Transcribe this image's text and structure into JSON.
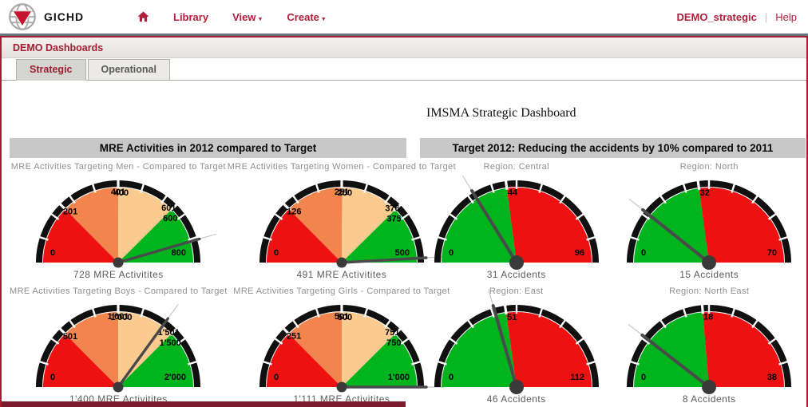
{
  "topbar": {
    "logo_text": "GICHD",
    "nav": [
      {
        "label": "Library"
      },
      {
        "label": "View"
      },
      {
        "label": "Create"
      }
    ],
    "user": "DEMO_strategic",
    "help_label": "Help"
  },
  "breadcrumb": "DEMO Dashboards",
  "tabs": [
    {
      "label": "Strategic",
      "active": true
    },
    {
      "label": "Operational",
      "active": false
    }
  ],
  "page_title": "IMSMA Strategic Dashboard",
  "panels": [
    {
      "header": "MRE Activities in 2012 compared to Target"
    },
    {
      "header": "Target 2012: Reducing the accidents by 10% compared to 2011"
    }
  ],
  "colors": {
    "accent": "#a51c30",
    "nav_red": "#b01e3c",
    "footer_bar": "#7d1b2e",
    "panel_header_bg": "#c8c8c8",
    "gauge": {
      "red": "#ee1111",
      "orange": "#f2854e",
      "tan": "#fbca8e",
      "green": "#00b41e",
      "arc": "#101010",
      "tick": "#ffffff",
      "needle": "#4a4a4a",
      "needle_ext": "#c8c8c8",
      "hub": "#3a3a3a"
    }
  },
  "chart_data": [
    {
      "type": "gauge",
      "panel": 0,
      "title": "MRE Activities Targeting Men - Compared to Target",
      "min": 0,
      "max": 800,
      "value": 728,
      "caption": "728 MRE Activitites",
      "min_label": "0",
      "max_label": "800",
      "bands": [
        {
          "from": 0,
          "to": 201,
          "color": "red"
        },
        {
          "from": 201,
          "to": 401,
          "color": "orange"
        },
        {
          "from": 401,
          "to": 601,
          "color": "tan"
        },
        {
          "from": 601,
          "to": 800,
          "color": "green"
        }
      ],
      "marks": [
        {
          "value": 201,
          "labels": [
            "201"
          ]
        },
        {
          "value": 400,
          "labels": [
            "401",
            "400"
          ],
          "mode": "overlap"
        },
        {
          "value": 601,
          "labels": [
            "601",
            "600"
          ],
          "mode": "stack"
        }
      ]
    },
    {
      "type": "gauge",
      "panel": 0,
      "title": "MRE Activities Targeting Women - Compared to Target",
      "min": 0,
      "max": 500,
      "value": 491,
      "caption": "491 MRE Activitites",
      "min_label": "0",
      "max_label": "500",
      "bands": [
        {
          "from": 0,
          "to": 126,
          "color": "red"
        },
        {
          "from": 126,
          "to": 251,
          "color": "orange"
        },
        {
          "from": 251,
          "to": 376,
          "color": "tan"
        },
        {
          "from": 376,
          "to": 500,
          "color": "green"
        }
      ],
      "marks": [
        {
          "value": 126,
          "labels": [
            "126"
          ]
        },
        {
          "value": 250,
          "labels": [
            "251",
            "250"
          ],
          "mode": "overlap"
        },
        {
          "value": 376,
          "labels": [
            "376",
            "375"
          ],
          "mode": "stack"
        }
      ]
    },
    {
      "type": "gauge",
      "panel": 0,
      "title": "MRE Activities Targeting Boys -  Compared to Target",
      "min": 0,
      "max": 2000,
      "value": 1400,
      "caption": "1'400 MRE Activitites",
      "min_label": "0",
      "max_label": "2'000",
      "bands": [
        {
          "from": 0,
          "to": 501,
          "color": "red"
        },
        {
          "from": 501,
          "to": 1001,
          "color": "orange"
        },
        {
          "from": 1001,
          "to": 1501,
          "color": "tan"
        },
        {
          "from": 1501,
          "to": 2000,
          "color": "green"
        }
      ],
      "marks": [
        {
          "value": 501,
          "labels": [
            "501"
          ]
        },
        {
          "value": 1000,
          "labels": [
            "1'001",
            "1'000"
          ],
          "mode": "overlap"
        },
        {
          "value": 1501,
          "labels": [
            "1'501",
            "1'500"
          ],
          "mode": "stack"
        }
      ]
    },
    {
      "type": "gauge",
      "panel": 0,
      "title": "MRE Activities Targeting Girls -  Compared to Target",
      "min": 0,
      "max": 1000,
      "value": 1111,
      "caption": "1'111 MRE Activitites",
      "min_label": "0",
      "max_label": "1'000",
      "bands": [
        {
          "from": 0,
          "to": 251,
          "color": "red"
        },
        {
          "from": 251,
          "to": 501,
          "color": "orange"
        },
        {
          "from": 501,
          "to": 751,
          "color": "tan"
        },
        {
          "from": 751,
          "to": 1000,
          "color": "green"
        }
      ],
      "marks": [
        {
          "value": 251,
          "labels": [
            "251"
          ]
        },
        {
          "value": 500,
          "labels": [
            "501",
            "500"
          ],
          "mode": "overlap"
        },
        {
          "value": 751,
          "labels": [
            "751",
            "750"
          ],
          "mode": "stack"
        }
      ]
    },
    {
      "type": "gauge",
      "panel": 1,
      "title": "Region: Central",
      "min": 0,
      "max": 96,
      "value": 31,
      "caption": "31 Accidents",
      "min_label": "0",
      "max_label": "96",
      "bands": [
        {
          "from": 0,
          "to": 44,
          "color": "green"
        },
        {
          "from": 44,
          "to": 96,
          "color": "red"
        }
      ],
      "marks": [
        {
          "value": 44,
          "labels": [
            "44"
          ]
        }
      ]
    },
    {
      "type": "gauge",
      "panel": 1,
      "title": "Region: North",
      "min": 0,
      "max": 70,
      "value": 15,
      "caption": "15 Accidents",
      "min_label": "0",
      "max_label": "70",
      "bands": [
        {
          "from": 0,
          "to": 32,
          "color": "green"
        },
        {
          "from": 32,
          "to": 70,
          "color": "red"
        }
      ],
      "marks": [
        {
          "value": 32,
          "labels": [
            "32"
          ]
        }
      ]
    },
    {
      "type": "gauge",
      "panel": 1,
      "title": "Region: East",
      "min": 0,
      "max": 112,
      "value": 46,
      "caption": "46 Accidents",
      "min_label": "0",
      "max_label": "112",
      "bands": [
        {
          "from": 0,
          "to": 51,
          "color": "green"
        },
        {
          "from": 51,
          "to": 112,
          "color": "red"
        }
      ],
      "marks": [
        {
          "value": 51,
          "labels": [
            "51"
          ]
        }
      ]
    },
    {
      "type": "gauge",
      "panel": 1,
      "title": "Region: North East",
      "min": 0,
      "max": 38,
      "value": 8,
      "caption": "8 Accidents",
      "min_label": "0",
      "max_label": "38",
      "bands": [
        {
          "from": 0,
          "to": 18,
          "color": "green"
        },
        {
          "from": 18,
          "to": 38,
          "color": "red"
        }
      ],
      "marks": [
        {
          "value": 18,
          "labels": [
            "18"
          ]
        }
      ]
    }
  ]
}
